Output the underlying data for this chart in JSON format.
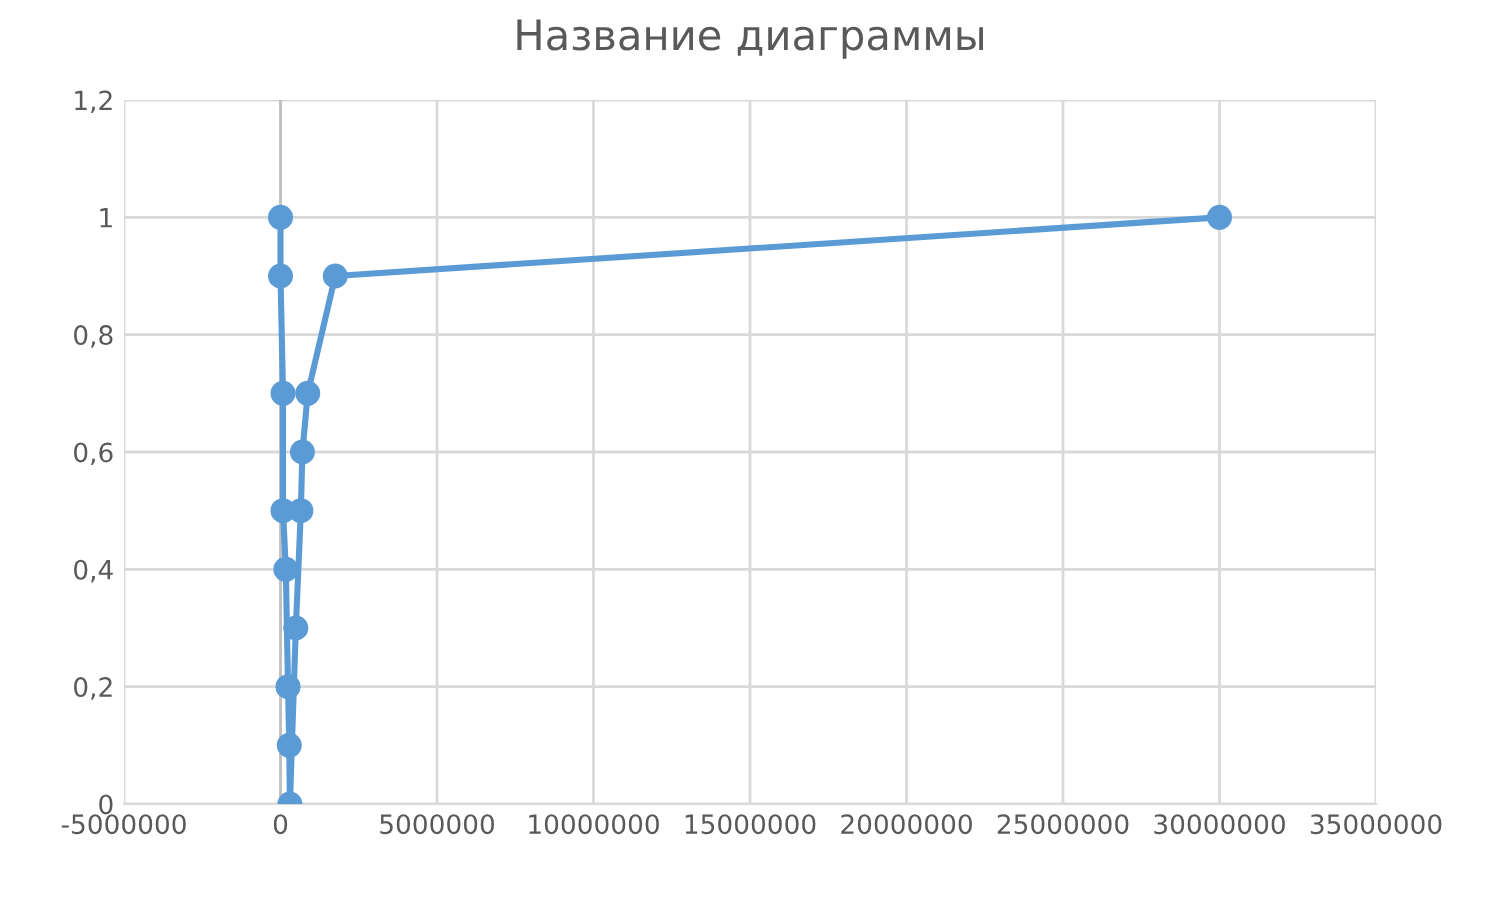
{
  "chart_data": {
    "type": "line",
    "title": "Название диаграммы",
    "series": [
      {
        "color": "#5b9bd5",
        "marker": "circle",
        "x": [
          0,
          0,
          80000,
          80000,
          170000,
          240000,
          280000,
          300000,
          490000,
          650000,
          700000,
          870000,
          1750000,
          30000000
        ],
        "values": [
          1,
          0.9,
          0.7,
          0.5,
          0.4,
          0.2,
          0.1,
          0,
          0.3,
          0.5,
          0.6,
          0.7,
          0.9,
          1
        ]
      }
    ],
    "xlim": [
      -5000000,
      35000000
    ],
    "xticks": [
      -5000000,
      0,
      5000000,
      10000000,
      15000000,
      20000000,
      25000000,
      30000000,
      35000000
    ],
    "ylim": [
      0,
      1.2
    ],
    "yticks": [
      {
        "value": 0,
        "label": "0"
      },
      {
        "value": 0.2,
        "label": "0,2"
      },
      {
        "value": 0.4,
        "label": "0,4"
      },
      {
        "value": 0.6,
        "label": "0,6"
      },
      {
        "value": 0.8,
        "label": "0,8"
      },
      {
        "value": 1,
        "label": "1"
      },
      {
        "value": 1.2,
        "label": "1,2"
      }
    ],
    "grid": true,
    "legend": false
  }
}
